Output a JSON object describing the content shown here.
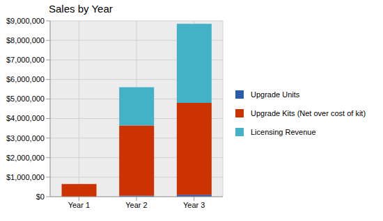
{
  "chart_data": {
    "type": "bar",
    "title": "Sales by Year",
    "stacked": true,
    "grid": true,
    "legend": "right",
    "categories": [
      "Year 1",
      "Year 2",
      "Year 3"
    ],
    "series": [
      {
        "name": "Upgrade Units",
        "color": "#2a5caa",
        "values": [
          0,
          50000,
          100000
        ]
      },
      {
        "name": "Upgrade Kits (Net over cost of kit)",
        "color": "#cc3300",
        "values": [
          650000,
          3600000,
          4700000
        ]
      },
      {
        "name": "Licensing Revenue",
        "color": "#44b2c6",
        "values": [
          0,
          1950000,
          4050000
        ]
      }
    ],
    "ylim": [
      0,
      9000000
    ],
    "yticks": [
      {
        "value": 0,
        "label": "$0"
      },
      {
        "value": 1000000,
        "label": "$1,000,000"
      },
      {
        "value": 2000000,
        "label": "$2,000,000"
      },
      {
        "value": 3000000,
        "label": "$3,000,000"
      },
      {
        "value": 4000000,
        "label": "$4,000,000"
      },
      {
        "value": 5000000,
        "label": "$5,000,000"
      },
      {
        "value": 6000000,
        "label": "$6,000,000"
      },
      {
        "value": 7000000,
        "label": "$7,000,000"
      },
      {
        "value": 8000000,
        "label": "$8,000,000"
      },
      {
        "value": 9000000,
        "label": "$9,000,000"
      }
    ]
  }
}
